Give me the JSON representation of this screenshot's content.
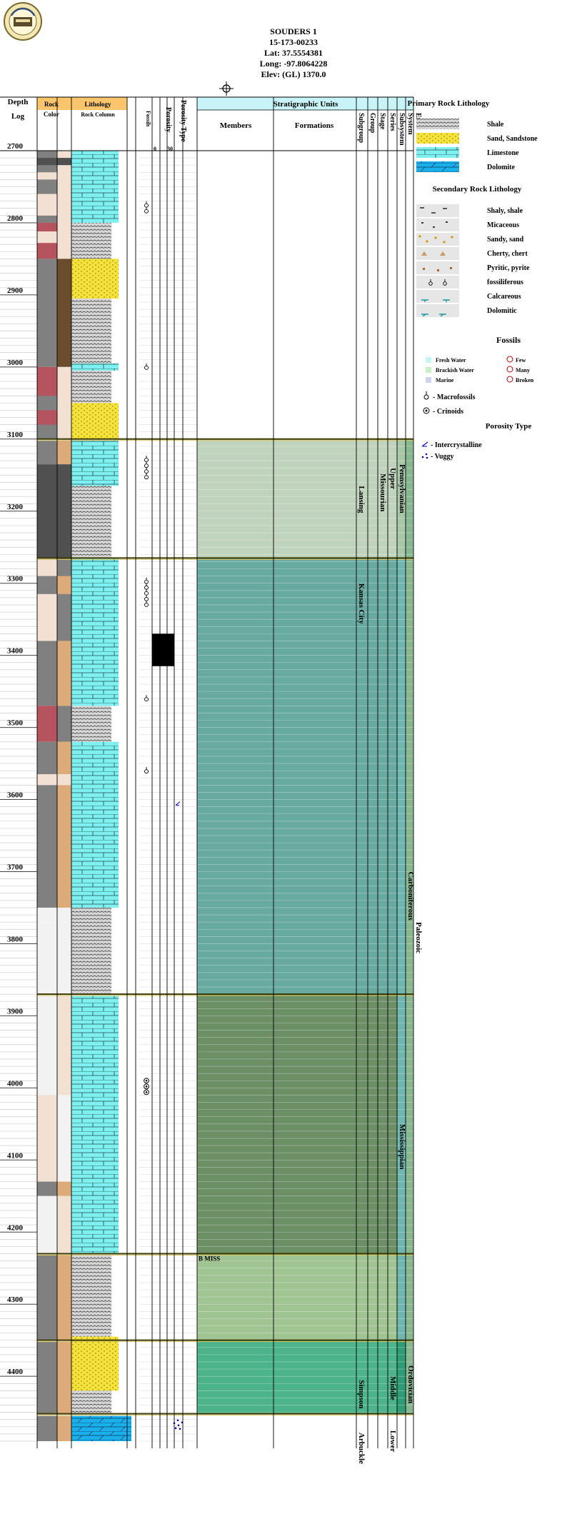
{
  "header": {
    "well_name": "SOUDERS 1",
    "api": "15-173-00233",
    "lat": "Lat: 37.5554381",
    "long": "Long: -97.8064228",
    "elev": "Elev: (GL) 1370.0"
  },
  "columns": {
    "depth": "Depth",
    "log": "Log",
    "rock": "Rock",
    "color": "Color",
    "lithology": "Lithology",
    "rock_column": "Rock Column",
    "fossils": "Fossils",
    "porosity": "Porosity",
    "porosity_type": "Porosity Type",
    "porosity_scale": [
      "0",
      "30"
    ],
    "strat_units": "Stratigraphic Units",
    "members": "Members",
    "formations": "Formations",
    "rank_labels": [
      "Subgroup",
      "Group",
      "Stage",
      "Series",
      "Subsystem",
      "System",
      "Era"
    ]
  },
  "legend": {
    "primary_title": "Primary Rock Lithology",
    "primary": [
      "Shale",
      "Sand, Sandstone",
      "Limestone",
      "Dolomite"
    ],
    "secondary_title": "Secondary Rock Lithology",
    "secondary": [
      "Shaly, shale",
      "Micaceous",
      "Sandy, sand",
      "Cherty, chert",
      "Pyritic, pyrite",
      "fossiliferous",
      "Calcareous",
      "Dolomitic"
    ],
    "fossils_title": "Fossils",
    "fossils_env": [
      "Fresh Water",
      "Brackish Water",
      "Marine"
    ],
    "fossils_abund": [
      "Few",
      "Many",
      "Broken"
    ],
    "macrofossils": "- Macrofossils",
    "crinoids": "- Crinoids",
    "porosity_title": "Porosity Type",
    "porosity_types": [
      "- Intercrystalline",
      "- Vuggy"
    ]
  },
  "chart_data": {
    "type": "well-log",
    "ylim": [
      2690,
      4500
    ],
    "depth_ticks": [
      2700,
      2800,
      2900,
      3000,
      3100,
      3200,
      3300,
      3400,
      3500,
      3600,
      3700,
      3800,
      3900,
      4000,
      4100,
      4200,
      4300,
      4400
    ],
    "colors": {
      "shale": "#c8c8c8",
      "sand": "#f5e23a",
      "limestone": "#7ff0f0",
      "dolomite": "#1ab0ec",
      "grey": "#808080",
      "dark_grey": "#505050",
      "brown": "#6b4c2c",
      "tan": "#ddab7a",
      "red": "#b5545e",
      "light_pink": "#f2e0d3",
      "pale_grey": "#f2f2f2"
    },
    "rock_color": [
      {
        "top": 2700,
        "bottom": 2800,
        "left": "grey",
        "right": "light_pink"
      },
      {
        "top": 2710,
        "bottom": 2720,
        "left": "dark_grey",
        "right": "dark_grey"
      },
      {
        "top": 2730,
        "bottom": 2740,
        "left": "light_pink",
        "right": "light_pink"
      },
      {
        "top": 2760,
        "bottom": 2790,
        "left": "light_pink",
        "right": "light_pink"
      },
      {
        "top": 2800,
        "bottom": 2850,
        "left": "red",
        "right": "light_pink"
      },
      {
        "top": 2812,
        "bottom": 2828,
        "left": "light_pink",
        "right": "light_pink"
      },
      {
        "top": 2850,
        "bottom": 3000,
        "left": "grey",
        "right": "brown"
      },
      {
        "top": 3000,
        "bottom": 3100,
        "left": "red",
        "right": "light_pink"
      },
      {
        "top": 3040,
        "bottom": 3060,
        "left": "grey",
        "right": "light_pink"
      },
      {
        "top": 3080,
        "bottom": 3100,
        "left": "grey",
        "right": "light_pink"
      },
      {
        "top": 3102,
        "bottom": 3135,
        "left": "grey",
        "right": "tan"
      },
      {
        "top": 3135,
        "bottom": 3265,
        "left": "dark_grey",
        "right": "dark_grey"
      },
      {
        "top": 3265,
        "bottom": 3380,
        "left": "light_pink",
        "right": "grey"
      },
      {
        "top": 3290,
        "bottom": 3315,
        "left": "grey",
        "right": "tan"
      },
      {
        "top": 3380,
        "bottom": 3470,
        "left": "grey",
        "right": "tan"
      },
      {
        "top": 3470,
        "bottom": 3520,
        "left": "red",
        "right": "grey"
      },
      {
        "top": 3520,
        "bottom": 3565,
        "left": "grey",
        "right": "tan"
      },
      {
        "top": 3565,
        "bottom": 3580,
        "left": "light_pink",
        "right": "light_pink"
      },
      {
        "top": 3580,
        "bottom": 3750,
        "left": "grey",
        "right": "tan"
      },
      {
        "top": 3750,
        "bottom": 3770,
        "left": "pale_grey",
        "right": "pale_grey"
      },
      {
        "top": 3770,
        "bottom": 3870,
        "left": "pale_grey",
        "right": "pale_grey"
      },
      {
        "top": 3872,
        "bottom": 4010,
        "left": "pale_grey",
        "right": "light_pink"
      },
      {
        "top": 4010,
        "bottom": 4130,
        "left": "light_pink",
        "right": "pale_grey"
      },
      {
        "top": 4130,
        "bottom": 4150,
        "left": "grey",
        "right": "tan"
      },
      {
        "top": 4150,
        "bottom": 4230,
        "left": "pale_grey",
        "right": "light_pink"
      },
      {
        "top": 4232,
        "bottom": 4350,
        "left": "grey",
        "right": "tan"
      },
      {
        "top": 4352,
        "bottom": 4452,
        "left": "grey",
        "right": "tan"
      },
      {
        "top": 4455,
        "bottom": 4490,
        "left": "grey",
        "right": "tan"
      }
    ],
    "lithology": [
      {
        "top": 2700,
        "bottom": 2800,
        "type": "limestone"
      },
      {
        "top": 2800,
        "bottom": 2850,
        "type": "shale"
      },
      {
        "top": 2850,
        "bottom": 2905,
        "type": "sand"
      },
      {
        "top": 2905,
        "bottom": 2995,
        "type": "shale"
      },
      {
        "top": 2995,
        "bottom": 3005,
        "type": "limestone"
      },
      {
        "top": 3005,
        "bottom": 3050,
        "type": "shale"
      },
      {
        "top": 3050,
        "bottom": 3100,
        "type": "sand"
      },
      {
        "top": 3102,
        "bottom": 3165,
        "type": "limestone"
      },
      {
        "top": 3165,
        "bottom": 3265,
        "type": "shale"
      },
      {
        "top": 3265,
        "bottom": 3470,
        "type": "limestone"
      },
      {
        "top": 3470,
        "bottom": 3520,
        "type": "shale"
      },
      {
        "top": 3520,
        "bottom": 3750,
        "type": "limestone"
      },
      {
        "top": 3750,
        "bottom": 3870,
        "type": "shale"
      },
      {
        "top": 3872,
        "bottom": 4230,
        "type": "limestone"
      },
      {
        "top": 4232,
        "bottom": 4345,
        "type": "shale"
      },
      {
        "top": 4345,
        "bottom": 4352,
        "type": "sand"
      },
      {
        "top": 4352,
        "bottom": 4420,
        "type": "sand"
      },
      {
        "top": 4420,
        "bottom": 4452,
        "type": "shale"
      },
      {
        "top": 4455,
        "bottom": 4490,
        "type": "dolomite"
      }
    ],
    "fossils": [
      2775,
      2783,
      3000,
      3128,
      3136,
      3144,
      3152,
      3297,
      3305,
      3313,
      3321,
      3329,
      3460,
      3560,
      3990,
      3998,
      4006
    ],
    "porosity_bars": [
      {
        "top": 3370,
        "bottom": 3415,
        "value": 30
      }
    ],
    "porosity_marks": [
      {
        "depth": 3605,
        "type": "intercrystalline"
      },
      {
        "depth": 4465,
        "type": "vuggy"
      }
    ],
    "strat_bands": [
      {
        "top": 3100,
        "bottom": 3265,
        "color": "#c0d3bc"
      },
      {
        "top": 3265,
        "bottom": 3870,
        "color": "#68a9a0"
      },
      {
        "top": 3870,
        "bottom": 4230,
        "color": "#6c8f66"
      },
      {
        "top": 4230,
        "bottom": 4350,
        "color": "#a1c493"
      },
      {
        "top": 4350,
        "bottom": 4452,
        "color": "#4cb38a"
      }
    ],
    "rank_bands": [
      {
        "col": "system",
        "top": 3100,
        "bottom": 3265,
        "color": "#a8c7a8"
      },
      {
        "col": "system",
        "top": 3265,
        "bottom": 4350,
        "color": "#6fb5b0"
      },
      {
        "col": "system",
        "top": 4350,
        "bottom": 4452,
        "color": "#2f9c76"
      },
      {
        "col": "subsystem",
        "top": 3100,
        "bottom": 3265,
        "color": "#a8c7a8"
      },
      {
        "col": "subsystem",
        "top": 3265,
        "bottom": 4350,
        "color": "#6fb5b0"
      },
      {
        "col": "subsystem",
        "top": 4350,
        "bottom": 4452,
        "color": "#2f9c76"
      },
      {
        "col": "era",
        "top": 3100,
        "bottom": 4452,
        "color": "#88b892"
      }
    ],
    "strat_labels": [
      {
        "text": "Lansing",
        "col": "subgroup",
        "depth": 3165
      },
      {
        "text": "Missourian",
        "col": "stage",
        "depth": 3148
      },
      {
        "text": "Upper",
        "col": "series",
        "depth": 3140
      },
      {
        "text": "Pennsylvanian",
        "col": "subsystem",
        "depth": 3135
      },
      {
        "text": "Kansas City",
        "col": "subgroup",
        "depth": 3300
      },
      {
        "text": "Carboniferous",
        "col": "system",
        "depth": 3700
      },
      {
        "text": "Paleozoic",
        "col": "era",
        "depth": 3770
      },
      {
        "text": "Mississippian",
        "col": "subsystem",
        "depth": 4050
      },
      {
        "text": "Ordovician",
        "col": "system",
        "depth": 4385
      },
      {
        "text": "Middle",
        "col": "series",
        "depth": 4400
      },
      {
        "text": "Simpson",
        "col": "subgroup",
        "depth": 4405
      },
      {
        "text": "Lower",
        "col": "series",
        "depth": 4475
      },
      {
        "text": "Arbuckle",
        "col": "subgroup",
        "depth": 4478
      }
    ],
    "member_label": {
      "text": "B MISS",
      "depth": 4233
    },
    "boundaries": [
      3100,
      3265,
      3870,
      4230,
      4350,
      4452
    ]
  }
}
